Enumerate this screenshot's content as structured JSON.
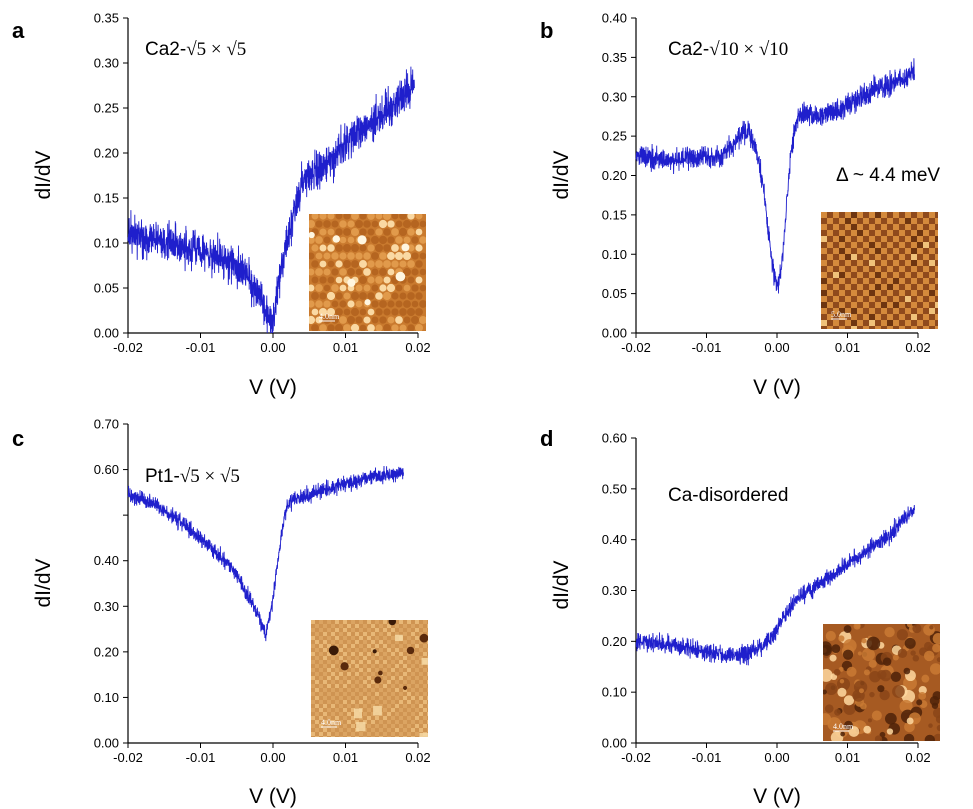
{
  "chart_data": [
    {
      "panel": "a",
      "type": "line",
      "label_prefix": "Ca2-",
      "label_math": "√5 × √5",
      "xlabel": "V (V)",
      "ylabel": "dI/dV",
      "xlim": [
        -0.02,
        0.02
      ],
      "ylim": [
        0,
        0.35
      ],
      "xticks": [
        "-0.02",
        "-0.01",
        "0.00",
        "0.01",
        "0.02"
      ],
      "yticks": [
        "0.00",
        "0.05",
        "0.10",
        "0.15",
        "0.20",
        "0.25",
        "0.30",
        "0.35"
      ],
      "series": [
        {
          "color": "#1f1fcc",
          "x": [
            -0.02,
            -0.018,
            -0.016,
            -0.014,
            -0.012,
            -0.01,
            -0.008,
            -0.006,
            -0.004,
            -0.003,
            -0.002,
            -0.0015,
            -0.001,
            -0.0005,
            0.0,
            0.0005,
            0.001,
            0.002,
            0.003,
            0.004,
            0.005,
            0.006,
            0.008,
            0.01,
            0.012,
            0.014,
            0.016,
            0.018,
            0.0195
          ],
          "y": [
            0.11,
            0.108,
            0.105,
            0.1,
            0.095,
            0.09,
            0.085,
            0.08,
            0.07,
            0.055,
            0.045,
            0.035,
            0.025,
            0.015,
            0.01,
            0.04,
            0.07,
            0.1,
            0.14,
            0.165,
            0.175,
            0.18,
            0.19,
            0.21,
            0.225,
            0.235,
            0.25,
            0.265,
            0.275
          ],
          "noise": 0.015
        }
      ],
      "inset": {
        "scalebar_label": "4.0nm",
        "palette": "granular"
      }
    },
    {
      "panel": "b",
      "type": "line",
      "label_prefix": "Ca2-",
      "label_math": "√10 × √10",
      "annotation": "Δ ~ 4.4 meV",
      "xlabel": "V (V)",
      "ylabel": "dI/dV",
      "xlim": [
        -0.02,
        0.02
      ],
      "ylim": [
        0,
        0.4
      ],
      "xticks": [
        "-0.02",
        "-0.01",
        "0.00",
        "0.01",
        "0.02"
      ],
      "yticks": [
        "0.00",
        "0.05",
        "0.10",
        "0.15",
        "0.20",
        "0.25",
        "0.30",
        "0.35",
        "0.40"
      ],
      "series": [
        {
          "color": "#1f1fcc",
          "x": [
            -0.02,
            -0.016,
            -0.012,
            -0.008,
            -0.006,
            -0.005,
            -0.004,
            -0.003,
            -0.002,
            -0.0015,
            -0.001,
            -0.0005,
            0.0,
            0.0005,
            0.001,
            0.0015,
            0.002,
            0.0025,
            0.003,
            0.004,
            0.006,
            0.008,
            0.01,
            0.012,
            0.014,
            0.016,
            0.018,
            0.0195
          ],
          "y": [
            0.225,
            0.22,
            0.222,
            0.225,
            0.24,
            0.255,
            0.255,
            0.235,
            0.19,
            0.15,
            0.11,
            0.08,
            0.06,
            0.075,
            0.12,
            0.18,
            0.23,
            0.26,
            0.275,
            0.28,
            0.275,
            0.28,
            0.29,
            0.3,
            0.31,
            0.315,
            0.325,
            0.335
          ],
          "noise": 0.01
        }
      ],
      "inset": {
        "scalebar_label": "5.0nm",
        "palette": "checker"
      }
    },
    {
      "panel": "c",
      "type": "line",
      "label_prefix": "Pt1-",
      "label_math": "√5 × √5",
      "xlabel": "V (V)",
      "ylabel": "dI/dV",
      "xlim": [
        -0.02,
        0.02
      ],
      "ylim": [
        0,
        0.7
      ],
      "xticks": [
        "-0.02",
        "-0.01",
        "0.00",
        "0.01",
        "0.02"
      ],
      "yticks": [
        "0.00",
        "0.10",
        "0.20",
        "0.30",
        "0.40",
        "0.50",
        "0.60",
        "0.70"
      ],
      "yticks_shown": [
        "0.00",
        "0.10",
        "0.20",
        "0.30",
        "0.40",
        "",
        "0.60",
        "0.70"
      ],
      "series": [
        {
          "color": "#1f1fcc",
          "x": [
            -0.02,
            -0.018,
            -0.016,
            -0.014,
            -0.012,
            -0.01,
            -0.008,
            -0.006,
            -0.005,
            -0.004,
            -0.003,
            -0.002,
            -0.0015,
            -0.001,
            -0.0005,
            0.0,
            0.0005,
            0.001,
            0.0015,
            0.002,
            0.003,
            0.004,
            0.006,
            0.008,
            0.01,
            0.012,
            0.014,
            0.016,
            0.018
          ],
          "y": [
            0.545,
            0.535,
            0.52,
            0.5,
            0.475,
            0.45,
            0.42,
            0.39,
            0.37,
            0.34,
            0.31,
            0.28,
            0.255,
            0.24,
            0.27,
            0.32,
            0.38,
            0.44,
            0.49,
            0.52,
            0.535,
            0.54,
            0.55,
            0.56,
            0.57,
            0.575,
            0.585,
            0.59,
            0.59
          ],
          "noise": 0.012
        }
      ],
      "inset": {
        "scalebar_label": "4.0nm",
        "palette": "lattice"
      }
    },
    {
      "panel": "d",
      "type": "line",
      "label_prefix": "",
      "label_math": "",
      "annotation": "Ca-disordered",
      "xlabel": "V (V)",
      "ylabel": "dI/dV",
      "xlim": [
        -0.02,
        0.02
      ],
      "ylim": [
        0,
        0.6
      ],
      "xticks": [
        "-0.02",
        "-0.01",
        "0.00",
        "0.01",
        "0.02"
      ],
      "yticks": [
        "0.00",
        "0.10",
        "0.20",
        "0.30",
        "0.40",
        "0.50",
        "0.60"
      ],
      "series": [
        {
          "color": "#1f1fcc",
          "x": [
            -0.02,
            -0.018,
            -0.016,
            -0.014,
            -0.012,
            -0.01,
            -0.008,
            -0.006,
            -0.004,
            -0.002,
            -0.001,
            0.0,
            0.001,
            0.002,
            0.003,
            0.004,
            0.006,
            0.008,
            0.01,
            0.012,
            0.014,
            0.016,
            0.018,
            0.0195
          ],
          "y": [
            0.2,
            0.198,
            0.195,
            0.19,
            0.185,
            0.18,
            0.175,
            0.172,
            0.175,
            0.19,
            0.205,
            0.22,
            0.25,
            0.27,
            0.285,
            0.295,
            0.315,
            0.33,
            0.35,
            0.37,
            0.39,
            0.41,
            0.44,
            0.46
          ],
          "noise": 0.012
        }
      ],
      "inset": {
        "scalebar_label": "4.0nm",
        "palette": "blobs"
      }
    }
  ]
}
